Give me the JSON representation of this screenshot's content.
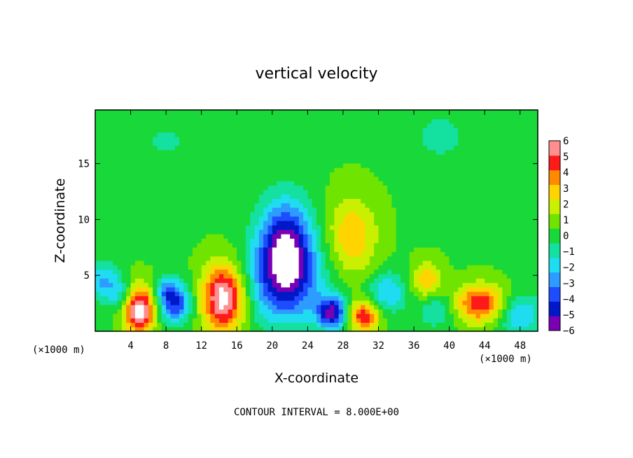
{
  "chart_data": {
    "type": "heatmap",
    "title": "vertical velocity",
    "xlabel": "X-coordinate",
    "ylabel": "Z-coordinate",
    "x_unit": "(×1000 m)",
    "y_unit": "(×1000 m)",
    "xlim": [
      0,
      50
    ],
    "ylim": [
      0,
      19.8
    ],
    "x_ticks": [
      4,
      8,
      12,
      16,
      20,
      24,
      28,
      32,
      36,
      40,
      44,
      48
    ],
    "y_ticks": [
      5,
      10,
      15
    ],
    "colorbar": {
      "levels": [
        -6,
        -5,
        -4,
        -3,
        -2,
        -1,
        0,
        1,
        2,
        3,
        4,
        5,
        6
      ],
      "colors": [
        "#7a00b5",
        "#0018c8",
        "#1d4dff",
        "#2d9bff",
        "#20dcf0",
        "#14e0a0",
        "#19d83a",
        "#6ee400",
        "#c8f000",
        "#ffd400",
        "#ff8a00",
        "#ff1a1a",
        "#ff8f8f"
      ]
    },
    "background_value": 0.4,
    "features": [
      {
        "x": 1,
        "z": 4.5,
        "value": -3,
        "sx": 1.2,
        "sz": 1.3
      },
      {
        "x": 3,
        "z": 3.3,
        "value": -2,
        "sx": 1.0,
        "sz": 1.0
      },
      {
        "x": 5,
        "z": 1.9,
        "value": 7,
        "sx": 1.2,
        "sz": 1.5
      },
      {
        "x": 9,
        "z": 2.6,
        "value": -5,
        "sx": 1.3,
        "sz": 1.3
      },
      {
        "x": 8,
        "z": 3.8,
        "value": -2,
        "sx": 0.8,
        "sz": 0.8
      },
      {
        "x": 14.5,
        "z": 3.0,
        "value": 7,
        "sx": 1.7,
        "sz": 2.1
      },
      {
        "x": 21.5,
        "z": 7.3,
        "value": -7,
        "sx": 2.2,
        "sz": 3.0
      },
      {
        "x": 21.5,
        "z": 3.8,
        "value": -3,
        "sx": 3.5,
        "sz": 2.5
      },
      {
        "x": 26.8,
        "z": 1.7,
        "value": -6,
        "sx": 1.2,
        "sz": 1.0
      },
      {
        "x": 30.3,
        "z": 1.4,
        "value": 5,
        "sx": 1.3,
        "sz": 1.0
      },
      {
        "x": 29,
        "z": 8.5,
        "value": 3,
        "sx": 2.0,
        "sz": 2.5
      },
      {
        "x": 33,
        "z": 3.5,
        "value": -3,
        "sx": 1.5,
        "sz": 1.3
      },
      {
        "x": 37.5,
        "z": 4.5,
        "value": 3,
        "sx": 1.2,
        "sz": 1.2
      },
      {
        "x": 38.5,
        "z": 2.0,
        "value": -2,
        "sx": 1.5,
        "sz": 1.2
      },
      {
        "x": 43.5,
        "z": 2.5,
        "value": 5,
        "sx": 2.0,
        "sz": 1.2
      },
      {
        "x": 48,
        "z": 1.5,
        "value": -3,
        "sx": 1.8,
        "sz": 1.3
      },
      {
        "x": 39,
        "z": 17.5,
        "value": -1.5,
        "sx": 2.0,
        "sz": 1.5
      },
      {
        "x": 8,
        "z": 17,
        "value": -1,
        "sx": 3.0,
        "sz": 2.0
      }
    ],
    "contour_interval_text": "CONTOUR INTERVAL = 8.000E+00"
  }
}
